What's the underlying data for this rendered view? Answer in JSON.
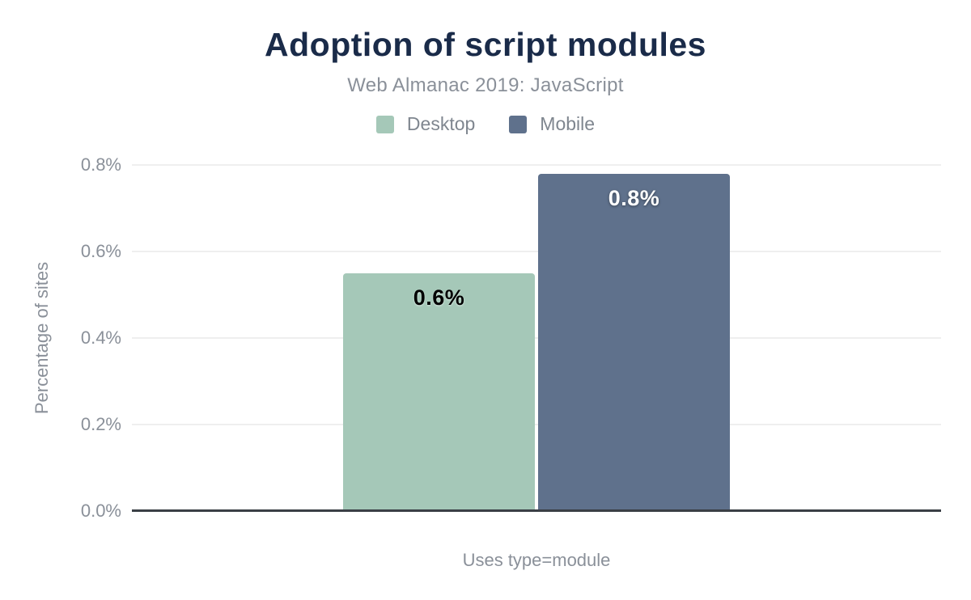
{
  "chart_data": {
    "type": "bar",
    "title": "Adoption of script modules",
    "subtitle": "Web Almanac 2019: JavaScript",
    "categories": [
      "Uses type=module"
    ],
    "series": [
      {
        "name": "Desktop",
        "color": "#a5c8b8",
        "values": [
          0.55
        ],
        "data_labels": [
          "0.6%"
        ],
        "label_color": "#000000"
      },
      {
        "name": "Mobile",
        "color": "#5f718c",
        "values": [
          0.78
        ],
        "data_labels": [
          "0.8%"
        ],
        "label_color": "#ffffff"
      }
    ],
    "xlabel": "Uses type=module",
    "ylabel": "Percentage of sites",
    "ylim": [
      0,
      0.8
    ],
    "yticks": [
      "0.0%",
      "0.2%",
      "0.4%",
      "0.6%",
      "0.8%"
    ],
    "grid": true,
    "legend_position": "top",
    "colors": {
      "title_text": "#1a2b49",
      "muted_text": "#8a9099",
      "gridline": "#efefef",
      "axis_line": "#3a3f45",
      "background": "#ffffff"
    }
  }
}
